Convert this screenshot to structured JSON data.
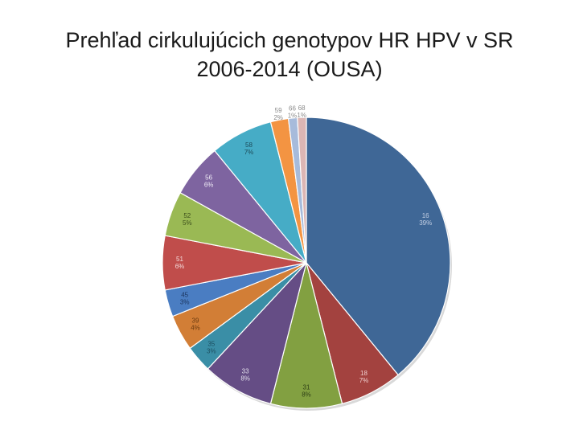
{
  "slide": {
    "title_line1": "Prehľad cirkulujúcich genotypov HR HPV v SR",
    "title_line2": "2006-2014 (OUSA)"
  },
  "chart_data": {
    "type": "pie",
    "title": "Prehľad cirkulujúcich genotypov HR HPV v SR 2006-2014 (OUSA)",
    "start": "12 o'clock",
    "direction": "clockwise",
    "categories": [
      "16",
      "18",
      "31",
      "33",
      "35",
      "39",
      "45",
      "51",
      "52",
      "56",
      "58",
      "59",
      "66",
      "68"
    ],
    "values": [
      39,
      7,
      8,
      8,
      3,
      4,
      3,
      6,
      5,
      6,
      7,
      2,
      1,
      1
    ],
    "labels": [
      "39%",
      "7%",
      "8%",
      "8%",
      "3%",
      "4%",
      "3%",
      "6%",
      "5%",
      "6%",
      "7%",
      "2%",
      "1%",
      "1%"
    ],
    "colors": [
      "#3f6796",
      "#a3423f",
      "#82a041",
      "#654d85",
      "#3a8ea6",
      "#d27e36",
      "#4a7dc2",
      "#c04d4b",
      "#9ab954",
      "#7e64a0",
      "#46acc6",
      "#f39442",
      "#a7bbdb",
      "#dcb6b4"
    ],
    "label_colors": [
      "#c4d0e4",
      "#f0d0d0",
      "#2f4017",
      "#e0dcea",
      "#1d4f60",
      "#6b3b10",
      "#1d3760",
      "#f3dcdc",
      "#3d4f1c",
      "#f0ecf7",
      "#1c4a58",
      "#6b3b10",
      "#6b7a90",
      "#7a7a7a"
    ]
  }
}
